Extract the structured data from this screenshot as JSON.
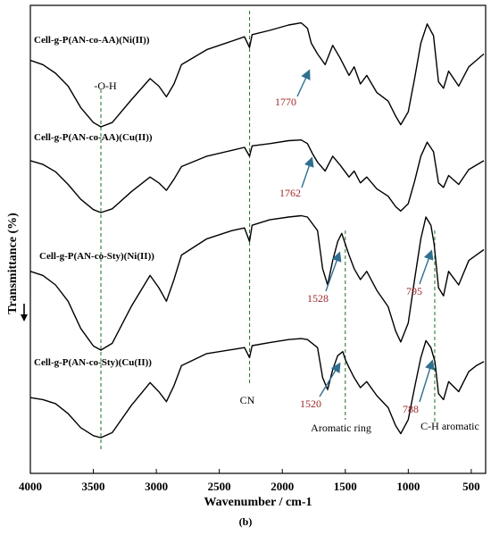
{
  "chart_data": {
    "type": "line",
    "xlabel": "Wavenumber / cm-1",
    "ylabel": "Transmittance (%)",
    "caption": "(b)",
    "xlim": [
      4000,
      400
    ],
    "x_ticks": [
      "4000",
      "3500",
      "3000",
      "2500",
      "2000",
      "1500",
      "1000",
      "500"
    ],
    "x_tick_values": [
      4000,
      3500,
      3000,
      2500,
      2000,
      1500,
      1000,
      500
    ],
    "series": [
      {
        "name": "Cell-g-P(AN-co-AA)(Ni(II))",
        "points": [
          [
            4000,
            0.62
          ],
          [
            3900,
            0.58
          ],
          [
            3800,
            0.5
          ],
          [
            3700,
            0.38
          ],
          [
            3600,
            0.18
          ],
          [
            3500,
            0.04
          ],
          [
            3440,
            0.0
          ],
          [
            3350,
            0.04
          ],
          [
            3200,
            0.25
          ],
          [
            3050,
            0.45
          ],
          [
            2980,
            0.38
          ],
          [
            2920,
            0.28
          ],
          [
            2860,
            0.4
          ],
          [
            2800,
            0.58
          ],
          [
            2600,
            0.72
          ],
          [
            2400,
            0.8
          ],
          [
            2300,
            0.84
          ],
          [
            2260,
            0.74
          ],
          [
            2240,
            0.86
          ],
          [
            2100,
            0.9
          ],
          [
            1950,
            0.95
          ],
          [
            1850,
            0.97
          ],
          [
            1800,
            0.92
          ],
          [
            1770,
            0.78
          ],
          [
            1720,
            0.68
          ],
          [
            1660,
            0.58
          ],
          [
            1600,
            0.76
          ],
          [
            1540,
            0.64
          ],
          [
            1470,
            0.48
          ],
          [
            1430,
            0.56
          ],
          [
            1380,
            0.4
          ],
          [
            1330,
            0.48
          ],
          [
            1250,
            0.32
          ],
          [
            1160,
            0.24
          ],
          [
            1100,
            0.1
          ],
          [
            1060,
            0.02
          ],
          [
            1000,
            0.14
          ],
          [
            950,
            0.45
          ],
          [
            900,
            0.78
          ],
          [
            850,
            0.96
          ],
          [
            800,
            0.85
          ],
          [
            760,
            0.42
          ],
          [
            720,
            0.36
          ],
          [
            680,
            0.52
          ],
          [
            600,
            0.38
          ],
          [
            520,
            0.56
          ],
          [
            460,
            0.62
          ],
          [
            400,
            0.68
          ]
        ]
      },
      {
        "name": "Cell-g-P(AN-co-AA)(Cu(II))",
        "points": [
          [
            4000,
            0.7
          ],
          [
            3900,
            0.65
          ],
          [
            3800,
            0.55
          ],
          [
            3700,
            0.38
          ],
          [
            3600,
            0.18
          ],
          [
            3500,
            0.04
          ],
          [
            3440,
            0.0
          ],
          [
            3350,
            0.05
          ],
          [
            3200,
            0.28
          ],
          [
            3050,
            0.48
          ],
          [
            2980,
            0.4
          ],
          [
            2920,
            0.3
          ],
          [
            2860,
            0.45
          ],
          [
            2800,
            0.62
          ],
          [
            2600,
            0.76
          ],
          [
            2400,
            0.84
          ],
          [
            2300,
            0.88
          ],
          [
            2260,
            0.76
          ],
          [
            2240,
            0.9
          ],
          [
            2100,
            0.93
          ],
          [
            1950,
            0.97
          ],
          [
            1850,
            0.98
          ],
          [
            1800,
            0.93
          ],
          [
            1762,
            0.8
          ],
          [
            1720,
            0.68
          ],
          [
            1660,
            0.56
          ],
          [
            1600,
            0.76
          ],
          [
            1540,
            0.64
          ],
          [
            1470,
            0.48
          ],
          [
            1430,
            0.56
          ],
          [
            1380,
            0.4
          ],
          [
            1330,
            0.48
          ],
          [
            1250,
            0.32
          ],
          [
            1160,
            0.22
          ],
          [
            1100,
            0.08
          ],
          [
            1060,
            0.02
          ],
          [
            1000,
            0.12
          ],
          [
            950,
            0.42
          ],
          [
            900,
            0.76
          ],
          [
            850,
            0.95
          ],
          [
            800,
            0.82
          ],
          [
            760,
            0.4
          ],
          [
            720,
            0.34
          ],
          [
            680,
            0.5
          ],
          [
            600,
            0.38
          ],
          [
            520,
            0.58
          ],
          [
            460,
            0.64
          ],
          [
            400,
            0.7
          ]
        ]
      },
      {
        "name": "Cell-g-P(AN-co-Sty)(Ni(II))",
        "points": [
          [
            4000,
            0.58
          ],
          [
            3900,
            0.55
          ],
          [
            3800,
            0.48
          ],
          [
            3700,
            0.36
          ],
          [
            3600,
            0.16
          ],
          [
            3500,
            0.03
          ],
          [
            3440,
            0.0
          ],
          [
            3350,
            0.05
          ],
          [
            3200,
            0.32
          ],
          [
            3050,
            0.55
          ],
          [
            2980,
            0.46
          ],
          [
            2920,
            0.36
          ],
          [
            2860,
            0.52
          ],
          [
            2800,
            0.7
          ],
          [
            2600,
            0.82
          ],
          [
            2400,
            0.88
          ],
          [
            2300,
            0.9
          ],
          [
            2260,
            0.8
          ],
          [
            2240,
            0.92
          ],
          [
            2100,
            0.96
          ],
          [
            1950,
            0.98
          ],
          [
            1850,
            0.99
          ],
          [
            1800,
            0.98
          ],
          [
            1720,
            0.88
          ],
          [
            1680,
            0.6
          ],
          [
            1640,
            0.48
          ],
          [
            1600,
            0.66
          ],
          [
            1560,
            0.8
          ],
          [
            1528,
            0.86
          ],
          [
            1500,
            0.78
          ],
          [
            1470,
            0.7
          ],
          [
            1430,
            0.6
          ],
          [
            1380,
            0.52
          ],
          [
            1330,
            0.58
          ],
          [
            1250,
            0.44
          ],
          [
            1160,
            0.32
          ],
          [
            1100,
            0.14
          ],
          [
            1060,
            0.06
          ],
          [
            1000,
            0.2
          ],
          [
            950,
            0.52
          ],
          [
            900,
            0.82
          ],
          [
            860,
            0.98
          ],
          [
            820,
            0.92
          ],
          [
            795,
            0.78
          ],
          [
            760,
            0.46
          ],
          [
            720,
            0.4
          ],
          [
            680,
            0.58
          ],
          [
            600,
            0.48
          ],
          [
            520,
            0.66
          ],
          [
            460,
            0.7
          ],
          [
            400,
            0.74
          ]
        ]
      },
      {
        "name": "Cell-g-P(AN-co-Sty)(Cu(II))",
        "points": [
          [
            4000,
            0.4
          ],
          [
            3900,
            0.38
          ],
          [
            3800,
            0.34
          ],
          [
            3700,
            0.24
          ],
          [
            3600,
            0.1
          ],
          [
            3500,
            0.02
          ],
          [
            3440,
            0.0
          ],
          [
            3350,
            0.05
          ],
          [
            3200,
            0.32
          ],
          [
            3050,
            0.55
          ],
          [
            2980,
            0.46
          ],
          [
            2920,
            0.36
          ],
          [
            2860,
            0.52
          ],
          [
            2800,
            0.72
          ],
          [
            2600,
            0.84
          ],
          [
            2400,
            0.88
          ],
          [
            2300,
            0.9
          ],
          [
            2260,
            0.8
          ],
          [
            2240,
            0.92
          ],
          [
            2100,
            0.95
          ],
          [
            1950,
            0.98
          ],
          [
            1850,
            0.99
          ],
          [
            1800,
            0.98
          ],
          [
            1720,
            0.9
          ],
          [
            1680,
            0.6
          ],
          [
            1640,
            0.48
          ],
          [
            1600,
            0.68
          ],
          [
            1560,
            0.82
          ],
          [
            1520,
            0.86
          ],
          [
            1500,
            0.78
          ],
          [
            1470,
            0.7
          ],
          [
            1430,
            0.6
          ],
          [
            1380,
            0.5
          ],
          [
            1330,
            0.56
          ],
          [
            1250,
            0.42
          ],
          [
            1160,
            0.3
          ],
          [
            1100,
            0.12
          ],
          [
            1060,
            0.04
          ],
          [
            1000,
            0.18
          ],
          [
            950,
            0.5
          ],
          [
            900,
            0.8
          ],
          [
            860,
            0.97
          ],
          [
            820,
            0.9
          ],
          [
            788,
            0.76
          ],
          [
            760,
            0.44
          ],
          [
            720,
            0.38
          ],
          [
            680,
            0.56
          ],
          [
            600,
            0.46
          ],
          [
            520,
            0.66
          ],
          [
            460,
            0.72
          ],
          [
            400,
            0.76
          ]
        ]
      }
    ],
    "markers": [
      {
        "label": "-O-H",
        "x": 3440
      },
      {
        "label": "CN",
        "x": 2260
      },
      {
        "label": "Aromatic ring",
        "x": 1500
      },
      {
        "label": "C-H aromatic",
        "x": 790
      }
    ],
    "annotations": [
      {
        "label": "1770",
        "x": 1770,
        "series": 0
      },
      {
        "label": "1762",
        "x": 1762,
        "series": 1
      },
      {
        "label": "1528",
        "x": 1528,
        "series": 2
      },
      {
        "label": "795",
        "x": 795,
        "series": 2
      },
      {
        "label": "1520",
        "x": 1520,
        "series": 3
      },
      {
        "label": "788",
        "x": 788,
        "series": 3
      }
    ],
    "colors": {
      "line": "#000000",
      "marker": "#2e7d32",
      "annotation": "#a0282a",
      "arrow": "#2f6f8f"
    }
  }
}
